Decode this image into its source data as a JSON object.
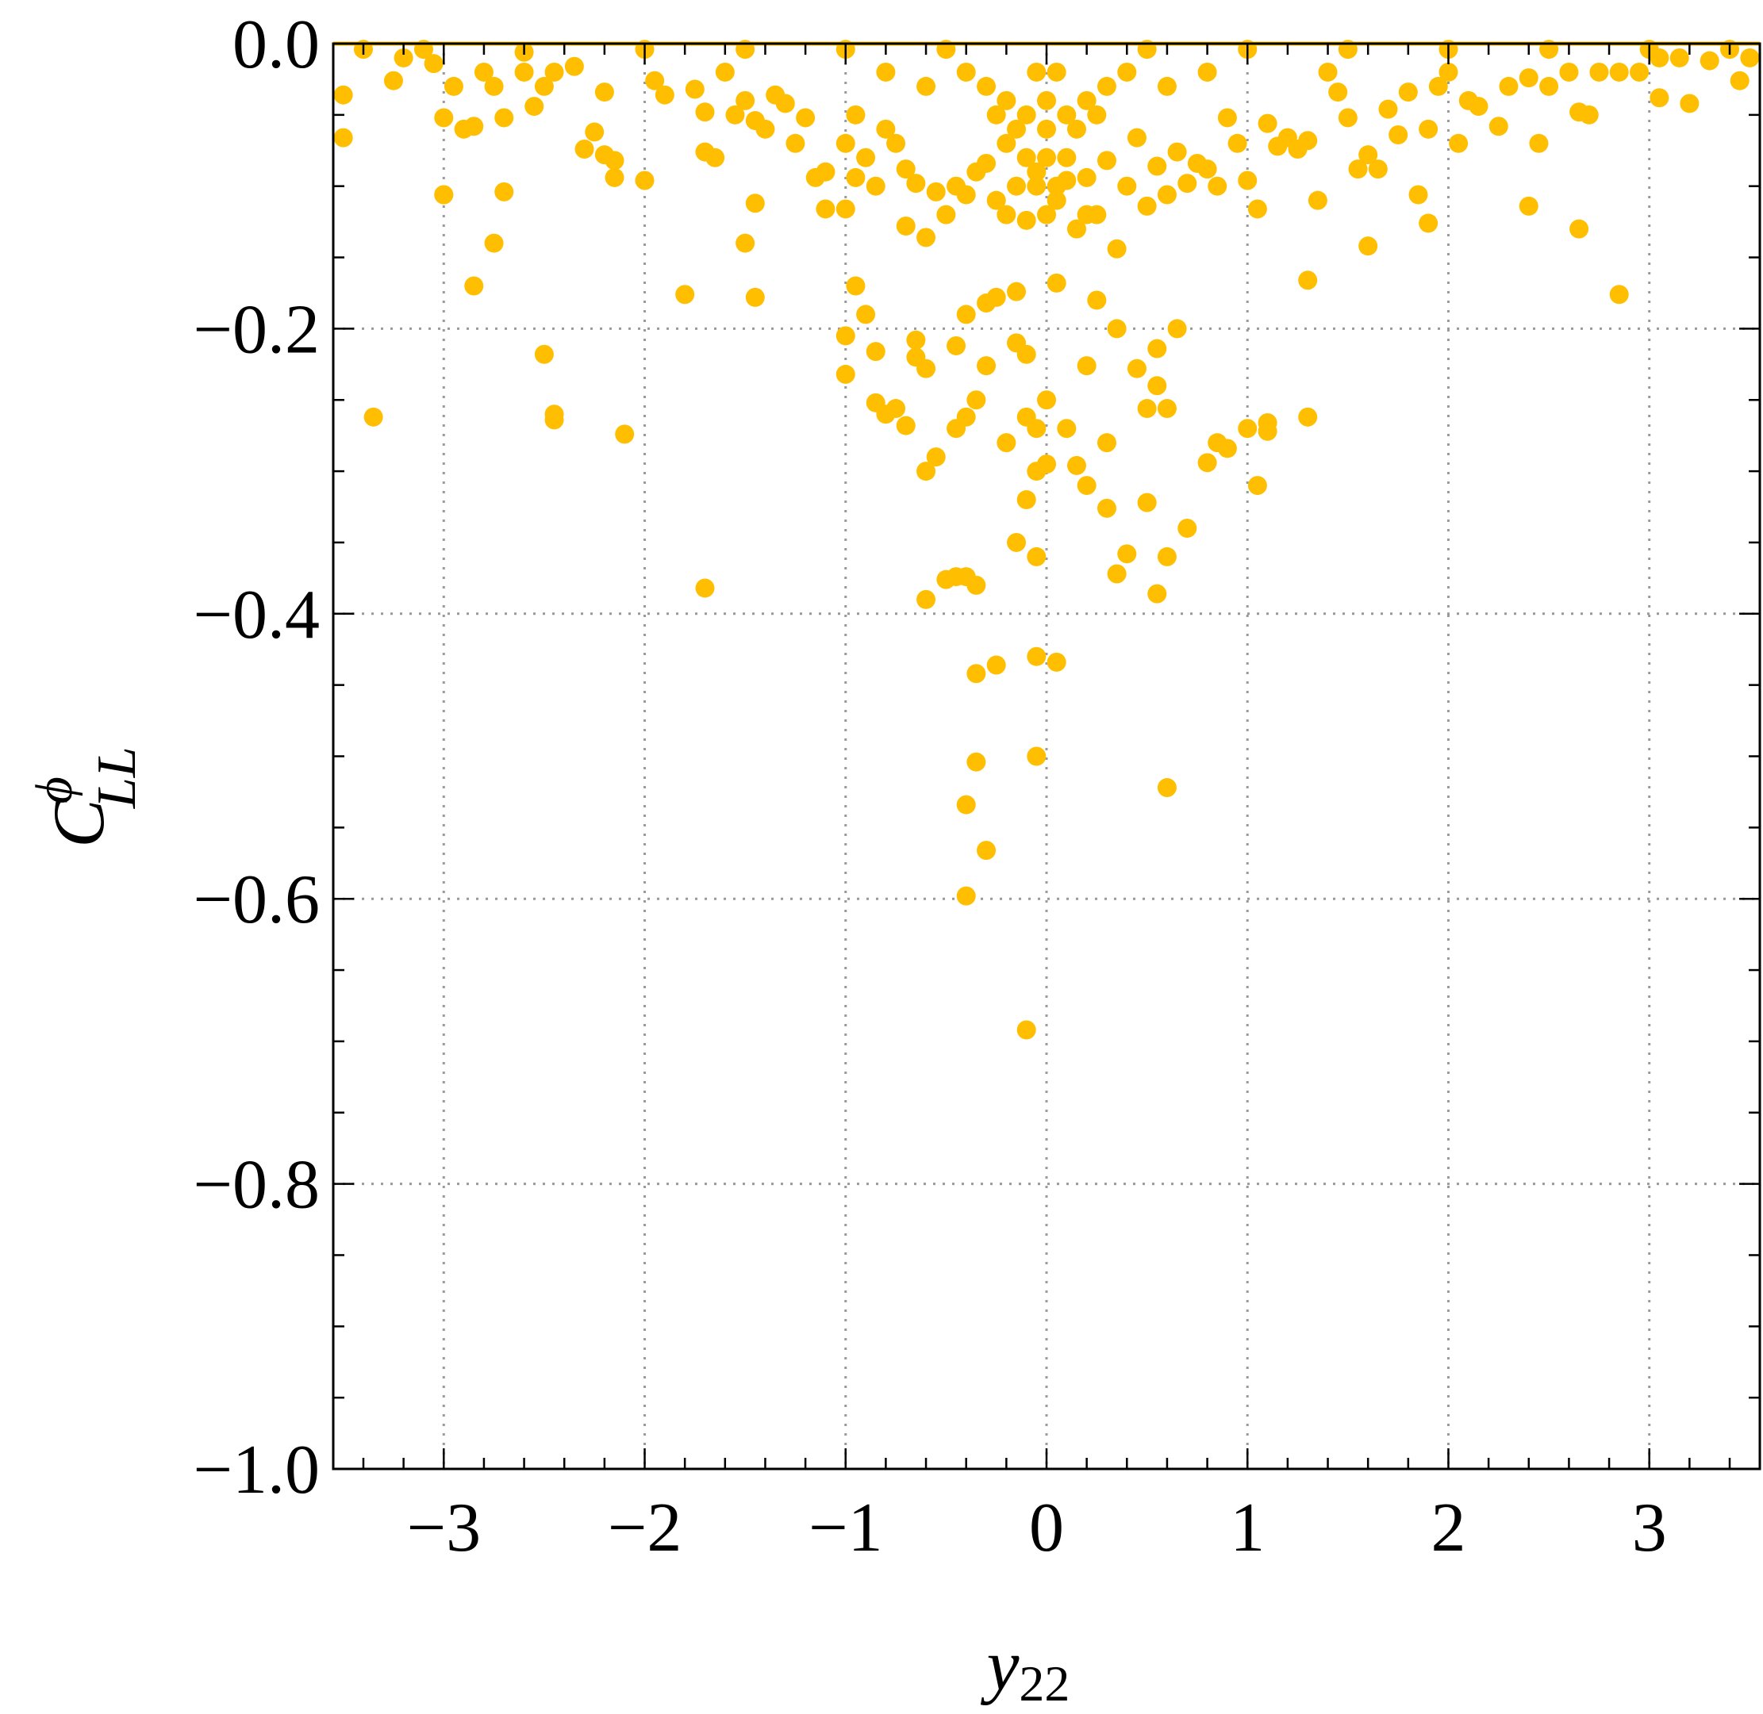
{
  "chart_data": {
    "type": "scatter",
    "xlabel": "y22",
    "xlabel_main": "y",
    "xlabel_sub": "22",
    "ylabel_main": "C",
    "ylabel_sup": "ϕ",
    "ylabel_sub": "LL",
    "xlim": [
      -3.55,
      3.55
    ],
    "ylim": [
      -1.0,
      0.0
    ],
    "x_ticks": [
      -3,
      -2,
      -1,
      0,
      1,
      2,
      3
    ],
    "x_tick_labels": [
      "−3",
      "−2",
      "−1",
      "0",
      "1",
      "2",
      "3"
    ],
    "y_ticks": [
      0.0,
      -0.2,
      -0.4,
      -0.6,
      -0.8,
      -1.0
    ],
    "y_tick_labels": [
      "0.0",
      "−0.2",
      "−0.4",
      "−0.6",
      "−0.8",
      "−1.0"
    ],
    "grid": true,
    "point_color": "#FFBF00",
    "series": [
      {
        "points": [
          [
            -3.5,
            -0.036
          ],
          [
            -3.5,
            -0.066
          ],
          [
            -3.25,
            -0.026
          ],
          [
            -3.2,
            -0.01
          ],
          [
            -3.05,
            -0.014
          ],
          [
            -3.0,
            -0.052
          ],
          [
            -3.0,
            -0.106
          ],
          [
            -2.95,
            -0.03
          ],
          [
            -2.9,
            -0.06
          ],
          [
            -2.85,
            -0.058
          ],
          [
            -2.8,
            -0.02
          ],
          [
            -2.75,
            -0.03
          ],
          [
            -2.7,
            -0.052
          ],
          [
            -2.7,
            -0.104
          ],
          [
            -2.6,
            -0.02
          ],
          [
            -2.55,
            -0.044
          ],
          [
            -2.5,
            -0.03
          ],
          [
            -2.45,
            -0.02
          ],
          [
            -2.35,
            -0.016
          ],
          [
            -2.3,
            -0.074
          ],
          [
            -2.25,
            -0.062
          ],
          [
            -2.2,
            -0.034
          ],
          [
            -2.2,
            -0.078
          ],
          [
            -2.15,
            -0.082
          ],
          [
            -2.15,
            -0.094
          ],
          [
            -2.0,
            -0.096
          ],
          [
            -1.95,
            -0.026
          ],
          [
            -1.9,
            -0.036
          ],
          [
            -1.75,
            -0.032
          ],
          [
            -1.7,
            -0.048
          ],
          [
            -1.7,
            -0.076
          ],
          [
            -1.65,
            -0.08
          ],
          [
            -1.6,
            -0.02
          ],
          [
            -1.55,
            -0.05
          ],
          [
            -1.5,
            -0.04
          ],
          [
            -1.45,
            -0.054
          ],
          [
            -1.4,
            -0.06
          ],
          [
            -1.35,
            -0.036
          ],
          [
            -1.3,
            -0.042
          ],
          [
            -1.25,
            -0.07
          ],
          [
            -1.2,
            -0.052
          ],
          [
            -1.15,
            -0.094
          ],
          [
            -1.1,
            -0.09
          ],
          [
            -1.1,
            -0.116
          ],
          [
            -1.0,
            -0.116
          ],
          [
            -1.0,
            -0.07
          ],
          [
            -0.95,
            -0.094
          ],
          [
            -0.95,
            -0.05
          ],
          [
            -0.9,
            -0.08
          ],
          [
            -0.85,
            -0.1
          ],
          [
            -0.8,
            -0.06
          ],
          [
            -0.75,
            -0.07
          ],
          [
            -0.7,
            -0.088
          ],
          [
            -0.7,
            -0.128
          ],
          [
            -0.65,
            -0.098
          ],
          [
            -0.6,
            -0.136
          ],
          [
            -0.55,
            -0.104
          ],
          [
            -0.5,
            -0.12
          ],
          [
            -0.45,
            -0.1
          ],
          [
            -0.4,
            -0.106
          ],
          [
            -0.35,
            -0.09
          ],
          [
            -0.3,
            -0.084
          ],
          [
            -0.25,
            -0.11
          ],
          [
            -0.2,
            -0.07
          ],
          [
            -0.15,
            -0.1
          ],
          [
            -0.1,
            -0.124
          ],
          [
            -0.05,
            -0.09
          ],
          [
            0.0,
            -0.08
          ],
          [
            0.05,
            -0.11
          ],
          [
            0.1,
            -0.096
          ],
          [
            0.15,
            -0.13
          ],
          [
            0.2,
            -0.094
          ],
          [
            0.25,
            -0.12
          ],
          [
            0.3,
            -0.082
          ],
          [
            0.35,
            -0.144
          ],
          [
            0.4,
            -0.1
          ],
          [
            0.45,
            -0.066
          ],
          [
            0.5,
            -0.114
          ],
          [
            0.55,
            -0.086
          ],
          [
            0.6,
            -0.106
          ],
          [
            0.65,
            -0.076
          ],
          [
            0.7,
            -0.098
          ],
          [
            0.75,
            -0.084
          ],
          [
            0.8,
            -0.088
          ],
          [
            0.85,
            -0.1
          ],
          [
            0.9,
            -0.052
          ],
          [
            0.95,
            -0.07
          ],
          [
            1.0,
            -0.096
          ],
          [
            1.05,
            -0.116
          ],
          [
            1.1,
            -0.056
          ],
          [
            1.15,
            -0.072
          ],
          [
            1.2,
            -0.066
          ],
          [
            1.25,
            -0.074
          ],
          [
            1.3,
            -0.068
          ],
          [
            1.35,
            -0.11
          ],
          [
            1.4,
            -0.02
          ],
          [
            1.45,
            -0.034
          ],
          [
            1.5,
            -0.052
          ],
          [
            1.55,
            -0.088
          ],
          [
            1.6,
            -0.078
          ],
          [
            1.65,
            -0.088
          ],
          [
            1.7,
            -0.046
          ],
          [
            1.75,
            -0.064
          ],
          [
            1.8,
            -0.034
          ],
          [
            1.85,
            -0.106
          ],
          [
            1.9,
            -0.06
          ],
          [
            1.95,
            -0.03
          ],
          [
            2.0,
            -0.02
          ],
          [
            2.05,
            -0.07
          ],
          [
            2.1,
            -0.04
          ],
          [
            2.15,
            -0.044
          ],
          [
            2.25,
            -0.058
          ],
          [
            2.3,
            -0.03
          ],
          [
            2.4,
            -0.024
          ],
          [
            2.45,
            -0.07
          ],
          [
            2.5,
            -0.03
          ],
          [
            2.6,
            -0.02
          ],
          [
            2.65,
            -0.048
          ],
          [
            2.7,
            -0.05
          ],
          [
            2.75,
            -0.02
          ],
          [
            2.85,
            -0.02
          ],
          [
            2.95,
            -0.02
          ],
          [
            3.05,
            -0.01
          ],
          [
            3.05,
            -0.038
          ],
          [
            3.15,
            -0.01
          ],
          [
            3.2,
            -0.042
          ],
          [
            3.3,
            -0.012
          ],
          [
            3.45,
            -0.026
          ],
          [
            3.5,
            -0.01
          ],
          [
            -3.4,
            -0.004
          ],
          [
            -3.1,
            -0.004
          ],
          [
            -2.6,
            -0.006
          ],
          [
            -2.0,
            -0.004
          ],
          [
            -1.5,
            -0.004
          ],
          [
            -1.0,
            -0.004
          ],
          [
            -0.5,
            -0.004
          ],
          [
            0.5,
            -0.004
          ],
          [
            1.0,
            -0.004
          ],
          [
            1.5,
            -0.004
          ],
          [
            2.0,
            -0.004
          ],
          [
            2.5,
            -0.004
          ],
          [
            3.0,
            -0.004
          ],
          [
            3.4,
            -0.004
          ],
          [
            -0.4,
            -0.02
          ],
          [
            -0.3,
            -0.03
          ],
          [
            -0.2,
            -0.04
          ],
          [
            -0.1,
            -0.05
          ],
          [
            0.0,
            -0.04
          ],
          [
            0.1,
            -0.05
          ],
          [
            0.2,
            -0.04
          ],
          [
            0.3,
            -0.03
          ],
          [
            0.4,
            -0.02
          ],
          [
            -0.6,
            -0.03
          ],
          [
            0.6,
            -0.03
          ],
          [
            -0.8,
            -0.02
          ],
          [
            0.8,
            -0.02
          ],
          [
            -0.05,
            -0.02
          ],
          [
            0.05,
            -0.02
          ],
          [
            -0.15,
            -0.06
          ],
          [
            0.15,
            -0.06
          ],
          [
            -0.05,
            -0.1
          ],
          [
            0.05,
            -0.1
          ],
          [
            0.0,
            -0.12
          ],
          [
            -0.1,
            -0.08
          ],
          [
            0.1,
            -0.08
          ],
          [
            -0.2,
            -0.12
          ],
          [
            0.2,
            -0.12
          ],
          [
            0.0,
            -0.06
          ],
          [
            -0.25,
            -0.05
          ],
          [
            0.25,
            -0.05
          ],
          [
            -3.35,
            -0.262
          ],
          [
            -3.0,
            -0.106
          ],
          [
            -2.85,
            -0.17
          ],
          [
            -2.75,
            -0.14
          ],
          [
            -2.5,
            -0.218
          ],
          [
            -2.45,
            -0.26
          ],
          [
            -2.45,
            -0.264
          ],
          [
            -2.1,
            -0.274
          ],
          [
            -1.8,
            -0.176
          ],
          [
            -1.7,
            -0.382
          ],
          [
            -1.5,
            -0.14
          ],
          [
            -1.45,
            -0.178
          ],
          [
            -1.45,
            -0.112
          ],
          [
            -1.0,
            -0.205
          ],
          [
            -1.0,
            -0.232
          ],
          [
            -0.95,
            -0.17
          ],
          [
            -0.9,
            -0.19
          ],
          [
            -0.85,
            -0.216
          ],
          [
            -0.85,
            -0.252
          ],
          [
            -0.8,
            -0.26
          ],
          [
            -0.75,
            -0.256
          ],
          [
            -0.7,
            -0.268
          ],
          [
            -0.65,
            -0.208
          ],
          [
            -0.65,
            -0.22
          ],
          [
            -0.6,
            -0.228
          ],
          [
            -0.6,
            -0.3
          ],
          [
            -0.55,
            -0.29
          ],
          [
            -0.5,
            -0.376
          ],
          [
            -0.45,
            -0.212
          ],
          [
            -0.45,
            -0.27
          ],
          [
            -0.4,
            -0.262
          ],
          [
            -0.4,
            -0.19
          ],
          [
            -0.35,
            -0.25
          ],
          [
            -0.3,
            -0.226
          ],
          [
            -0.3,
            -0.182
          ],
          [
            -0.25,
            -0.178
          ],
          [
            -0.2,
            -0.28
          ],
          [
            -0.15,
            -0.174
          ],
          [
            -0.15,
            -0.21
          ],
          [
            -0.1,
            -0.218
          ],
          [
            -0.1,
            -0.262
          ],
          [
            -0.05,
            -0.27
          ],
          [
            -0.05,
            -0.3
          ],
          [
            0.0,
            -0.25
          ],
          [
            0.0,
            -0.295
          ],
          [
            0.05,
            -0.168
          ],
          [
            0.1,
            -0.27
          ],
          [
            0.15,
            -0.296
          ],
          [
            0.2,
            -0.226
          ],
          [
            0.25,
            -0.18
          ],
          [
            0.3,
            -0.28
          ],
          [
            0.3,
            -0.326
          ],
          [
            0.35,
            -0.372
          ],
          [
            0.35,
            -0.2
          ],
          [
            0.4,
            -0.358
          ],
          [
            0.45,
            -0.228
          ],
          [
            0.5,
            -0.256
          ],
          [
            0.5,
            -0.322
          ],
          [
            0.55,
            -0.214
          ],
          [
            0.55,
            -0.24
          ],
          [
            0.6,
            -0.256
          ],
          [
            0.6,
            -0.36
          ],
          [
            0.65,
            -0.2
          ],
          [
            0.7,
            -0.34
          ],
          [
            0.8,
            -0.294
          ],
          [
            0.85,
            -0.28
          ],
          [
            0.9,
            -0.284
          ],
          [
            1.0,
            -0.27
          ],
          [
            1.05,
            -0.31
          ],
          [
            1.1,
            -0.266
          ],
          [
            1.1,
            -0.272
          ],
          [
            1.3,
            -0.262
          ],
          [
            1.3,
            -0.166
          ],
          [
            1.6,
            -0.142
          ],
          [
            2.4,
            -0.114
          ],
          [
            2.65,
            -0.13
          ],
          [
            2.85,
            -0.176
          ],
          [
            1.9,
            -0.126
          ],
          [
            0.55,
            -0.386
          ],
          [
            0.6,
            -0.522
          ],
          [
            -0.05,
            -0.5
          ],
          [
            -0.05,
            -0.43
          ],
          [
            0.05,
            -0.434
          ],
          [
            -0.35,
            -0.38
          ],
          [
            -0.4,
            -0.374
          ],
          [
            -0.45,
            -0.374
          ],
          [
            -0.35,
            -0.442
          ],
          [
            -0.25,
            -0.436
          ],
          [
            -0.35,
            -0.504
          ],
          [
            -0.4,
            -0.534
          ],
          [
            -0.3,
            -0.566
          ],
          [
            -0.4,
            -0.598
          ],
          [
            -0.1,
            -0.692
          ],
          [
            -0.6,
            -0.39
          ],
          [
            -0.15,
            -0.35
          ],
          [
            -0.1,
            -0.32
          ],
          [
            -0.05,
            -0.36
          ],
          [
            0.2,
            -0.31
          ]
        ]
      }
    ]
  }
}
